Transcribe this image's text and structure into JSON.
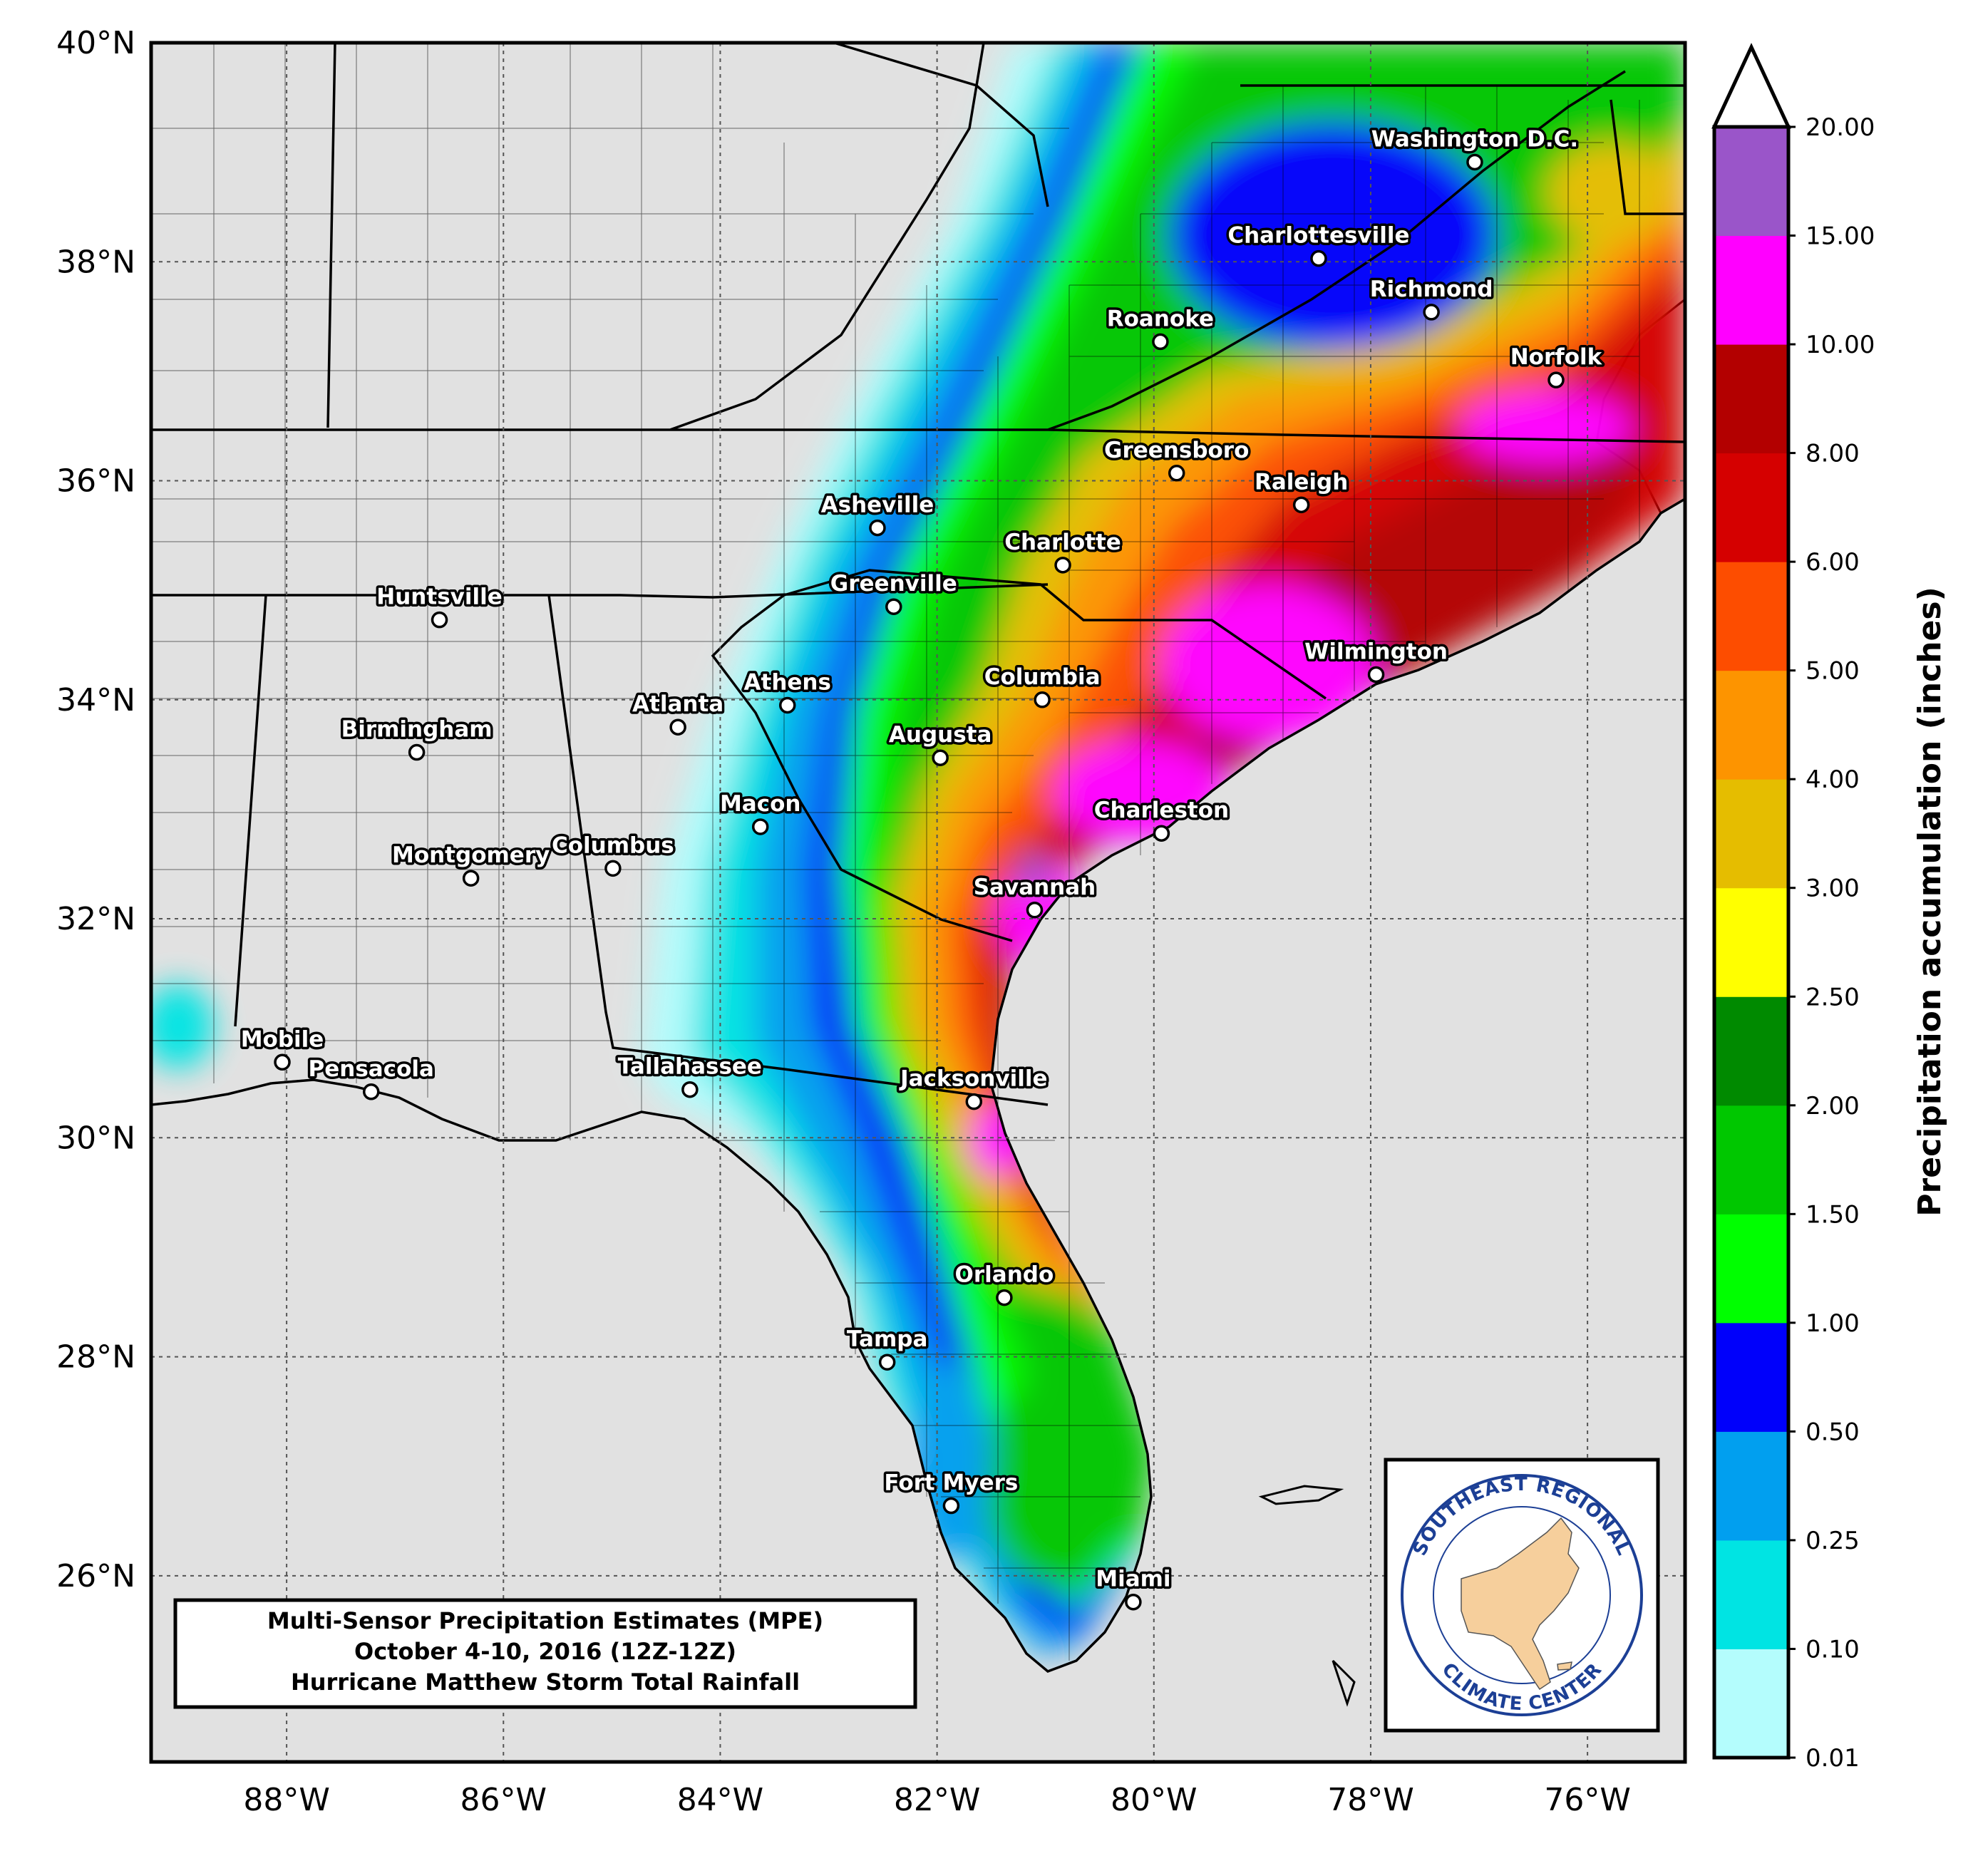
{
  "map": {
    "lat_ticks": [
      {
        "value": 40,
        "label": "40°N"
      },
      {
        "value": 38,
        "label": "38°N"
      },
      {
        "value": 36,
        "label": "36°N"
      },
      {
        "value": 34,
        "label": "34°N"
      },
      {
        "value": 32,
        "label": "32°N"
      },
      {
        "value": 30,
        "label": "30°N"
      },
      {
        "value": 28,
        "label": "28°N"
      },
      {
        "value": 26,
        "label": "26°N"
      }
    ],
    "lon_ticks": [
      {
        "value": -88,
        "label": "88°W"
      },
      {
        "value": -86,
        "label": "86°W"
      },
      {
        "value": -84,
        "label": "84°W"
      },
      {
        "value": -82,
        "label": "82°W"
      },
      {
        "value": -80,
        "label": "80°W"
      },
      {
        "value": -78,
        "label": "78°W"
      },
      {
        "value": -76,
        "label": "76°W"
      }
    ],
    "extent": {
      "lon_min": -89.25,
      "lon_max": -75.1,
      "lat_min": 24.3,
      "lat_max": 40.0
    },
    "background_color": "#e1e1e1",
    "cities": [
      {
        "name": "Washington D.C.",
        "lon": -77.04,
        "lat": 38.91
      },
      {
        "name": "Charlottesville",
        "lon": -78.48,
        "lat": 38.03
      },
      {
        "name": "Richmond",
        "lon": -77.44,
        "lat": 37.54
      },
      {
        "name": "Roanoke",
        "lon": -79.94,
        "lat": 37.27
      },
      {
        "name": "Norfolk",
        "lon": -76.29,
        "lat": 36.92
      },
      {
        "name": "Greensboro",
        "lon": -79.79,
        "lat": 36.07
      },
      {
        "name": "Raleigh",
        "lon": -78.64,
        "lat": 35.78
      },
      {
        "name": "Asheville",
        "lon": -82.55,
        "lat": 35.57
      },
      {
        "name": "Charlotte",
        "lon": -80.84,
        "lat": 35.23
      },
      {
        "name": "Greenville",
        "lon": -82.4,
        "lat": 34.85
      },
      {
        "name": "Huntsville",
        "lon": -86.59,
        "lat": 34.73
      },
      {
        "name": "Wilmington",
        "lon": -77.95,
        "lat": 34.23
      },
      {
        "name": "Athens",
        "lon": -83.38,
        "lat": 33.95
      },
      {
        "name": "Columbia",
        "lon": -81.03,
        "lat": 34.0
      },
      {
        "name": "Atlanta",
        "lon": -84.39,
        "lat": 33.75
      },
      {
        "name": "Birmingham",
        "lon": -86.8,
        "lat": 33.52
      },
      {
        "name": "Augusta",
        "lon": -81.97,
        "lat": 33.47
      },
      {
        "name": "Macon",
        "lon": -83.63,
        "lat": 32.84
      },
      {
        "name": "Charleston",
        "lon": -79.93,
        "lat": 32.78
      },
      {
        "name": "Columbus",
        "lon": -84.99,
        "lat": 32.46
      },
      {
        "name": "Montgomery",
        "lon": -86.3,
        "lat": 32.37
      },
      {
        "name": "Savannah",
        "lon": -81.1,
        "lat": 32.08
      },
      {
        "name": "Mobile",
        "lon": -88.04,
        "lat": 30.69
      },
      {
        "name": "Pensacola",
        "lon": -87.22,
        "lat": 30.42
      },
      {
        "name": "Tallahassee",
        "lon": -84.28,
        "lat": 30.44
      },
      {
        "name": "Jacksonville",
        "lon": -81.66,
        "lat": 30.33
      },
      {
        "name": "Orlando",
        "lon": -81.38,
        "lat": 28.54
      },
      {
        "name": "Tampa",
        "lon": -82.46,
        "lat": 27.95
      },
      {
        "name": "Fort Myers",
        "lon": -81.87,
        "lat": 26.64
      },
      {
        "name": "Miami",
        "lon": -80.19,
        "lat": 25.76
      }
    ]
  },
  "colorbar": {
    "label": "Precipitation accumulation (inches)",
    "boundaries": [
      "0.01",
      "0.10",
      "0.25",
      "0.50",
      "1.00",
      "1.50",
      "2.00",
      "2.50",
      "3.00",
      "4.00",
      "5.00",
      "6.00",
      "8.00",
      "10.00",
      "15.00",
      "20.00"
    ],
    "colors": [
      "#b4fdfd",
      "#00e4e3",
      "#019fef",
      "#0000fb",
      "#00ff00",
      "#00c700",
      "#008a00",
      "#ffff00",
      "#e5bd00",
      "#fd9400",
      "#fd4d00",
      "#d50000",
      "#b30000",
      "#ff00ff",
      "#9a55c9"
    ],
    "extend": "max"
  },
  "title_box": {
    "line1": "Multi-Sensor Precipitation Estimates (MPE)",
    "line2": "October 4-10, 2016 (12Z-12Z)",
    "line3": "Hurricane Matthew Storm Total Rainfall"
  },
  "logo": {
    "text_top": "SOUTHEAST REGIONAL",
    "text_bottom": "CLIMATE CENTER",
    "ring_color": "#1c3f95",
    "fill_color": "#f6cf9c"
  }
}
